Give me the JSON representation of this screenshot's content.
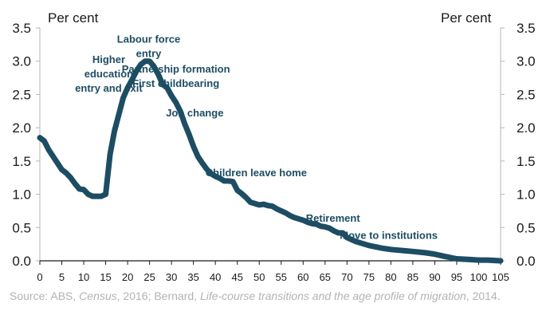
{
  "chart_data": {
    "type": "line",
    "title": "",
    "xlabel": "",
    "ylabel_left": "Per cent",
    "ylabel_right": "Per cent",
    "xlim": [
      0,
      105
    ],
    "ylim": [
      0,
      3.5
    ],
    "x_ticks": [
      "0",
      "5",
      "10",
      "15",
      "20",
      "25",
      "30",
      "35",
      "40",
      "45",
      "50",
      "55",
      "60",
      "65",
      "70",
      "75",
      "80",
      "85",
      "90",
      "95",
      "100",
      "105"
    ],
    "y_ticks": [
      "0.0",
      "0.5",
      "1.0",
      "1.5",
      "2.0",
      "2.5",
      "3.0",
      "3.5"
    ],
    "grid": false,
    "series": [
      {
        "color": "#1d4d63",
        "x": [
          0,
          1,
          2,
          3,
          4,
          5,
          6,
          7,
          8,
          9,
          10,
          11,
          12,
          13,
          14,
          15,
          16,
          17,
          18,
          19,
          20,
          21,
          22,
          23,
          24,
          25,
          26,
          27,
          28,
          29,
          30,
          31,
          32,
          33,
          34,
          35,
          36,
          37,
          38,
          39,
          40,
          41,
          42,
          43,
          44,
          45,
          46,
          47,
          48,
          49,
          50,
          51,
          52,
          53,
          54,
          55,
          56,
          57,
          58,
          59,
          60,
          61,
          62,
          63,
          64,
          65,
          66,
          67,
          68,
          69,
          70,
          72,
          75,
          78,
          80,
          85,
          88,
          90,
          92,
          95,
          98,
          100,
          102,
          105
        ],
        "y": [
          1.85,
          1.8,
          1.67,
          1.57,
          1.47,
          1.37,
          1.32,
          1.25,
          1.16,
          1.08,
          1.07,
          1.0,
          0.97,
          0.97,
          0.97,
          1.0,
          1.6,
          1.95,
          2.2,
          2.45,
          2.6,
          2.72,
          2.85,
          2.95,
          3.0,
          3.0,
          2.92,
          2.8,
          2.65,
          2.6,
          2.48,
          2.38,
          2.25,
          2.06,
          1.9,
          1.72,
          1.57,
          1.47,
          1.38,
          1.31,
          1.27,
          1.24,
          1.2,
          1.2,
          1.19,
          1.06,
          1.01,
          0.95,
          0.88,
          0.86,
          0.84,
          0.85,
          0.83,
          0.82,
          0.78,
          0.75,
          0.72,
          0.68,
          0.65,
          0.63,
          0.61,
          0.58,
          0.56,
          0.55,
          0.52,
          0.51,
          0.49,
          0.45,
          0.42,
          0.42,
          0.35,
          0.29,
          0.23,
          0.19,
          0.17,
          0.14,
          0.12,
          0.1,
          0.07,
          0.03,
          0.02,
          0.01,
          0.01,
          0.0
        ]
      }
    ],
    "annotations": [
      {
        "lines": [
          "Higher",
          "education",
          "entry and exit"
        ],
        "x": 15.7,
        "y": 2.97
      },
      {
        "lines": [
          "Labour force",
          "entry"
        ],
        "x": 24.8,
        "y": 3.28
      },
      {
        "lines": [
          "Partnership formation",
          "First childbearing"
        ],
        "x": 31.0,
        "y": 2.83
      },
      {
        "lines": [
          "Job change"
        ],
        "x": 35.3,
        "y": 2.17
      },
      {
        "lines": [
          "Children leave home"
        ],
        "x": 49.3,
        "y": 1.27
      },
      {
        "lines": [
          "Retirement"
        ],
        "x": 66.8,
        "y": 0.59
      },
      {
        "lines": [
          "Move to institutions"
        ],
        "x": 79.5,
        "y": 0.33
      }
    ]
  },
  "source": {
    "p1": "Source: ABS, ",
    "i1": "Census",
    "p2": ", 2016; Bernard, ",
    "i2": "Life-course transitions and the age profile of migration",
    "p3": ", 2014."
  }
}
